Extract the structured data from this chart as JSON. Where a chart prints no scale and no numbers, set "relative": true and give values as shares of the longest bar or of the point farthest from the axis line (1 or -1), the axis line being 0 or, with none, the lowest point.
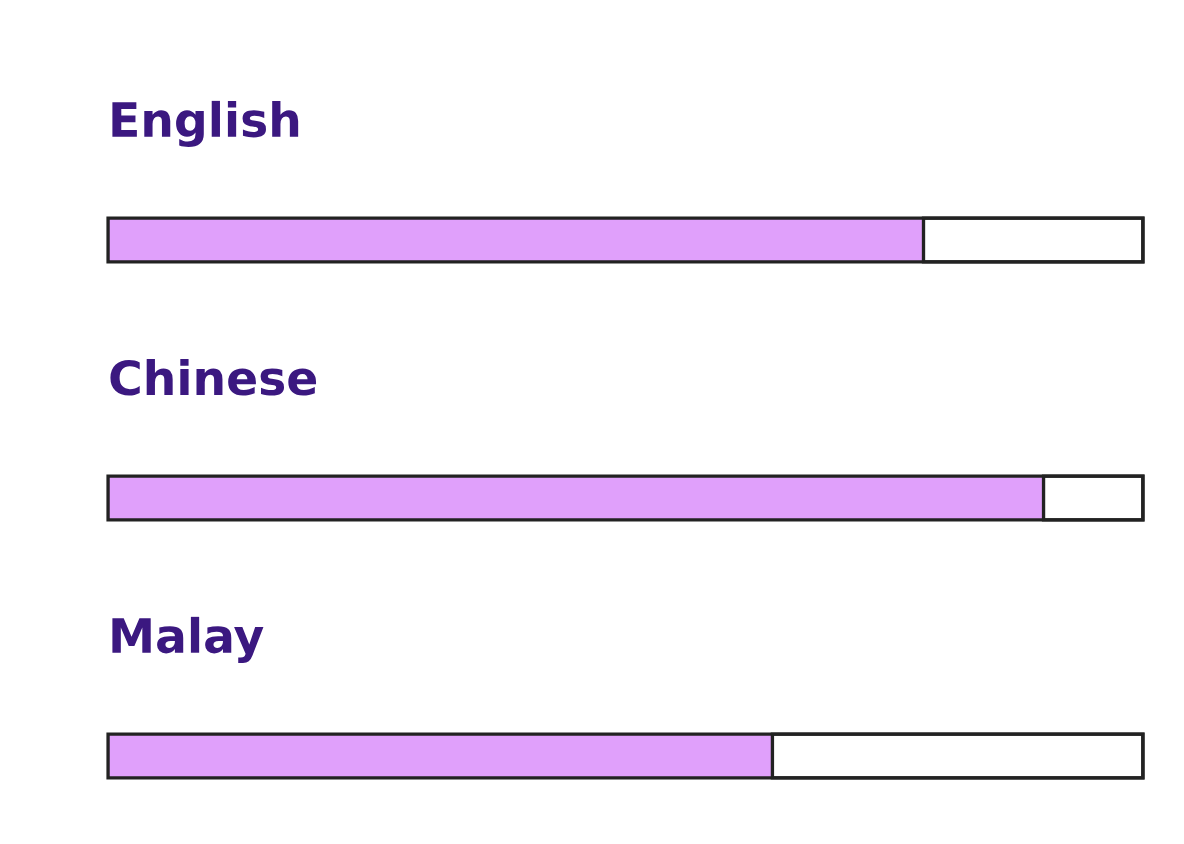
{
  "chart_data": {
    "type": "bar",
    "orientation": "horizontal",
    "stacked": true,
    "relative": true,
    "legend": false,
    "categories": [
      "English",
      "Chinese",
      "Malay"
    ],
    "series": [
      {
        "color": "#e0a0fb",
        "values": [
          0.788,
          0.904,
          0.642
        ]
      },
      {
        "color": "#ffffff",
        "values": [
          0.212,
          0.096,
          0.358
        ]
      }
    ]
  }
}
